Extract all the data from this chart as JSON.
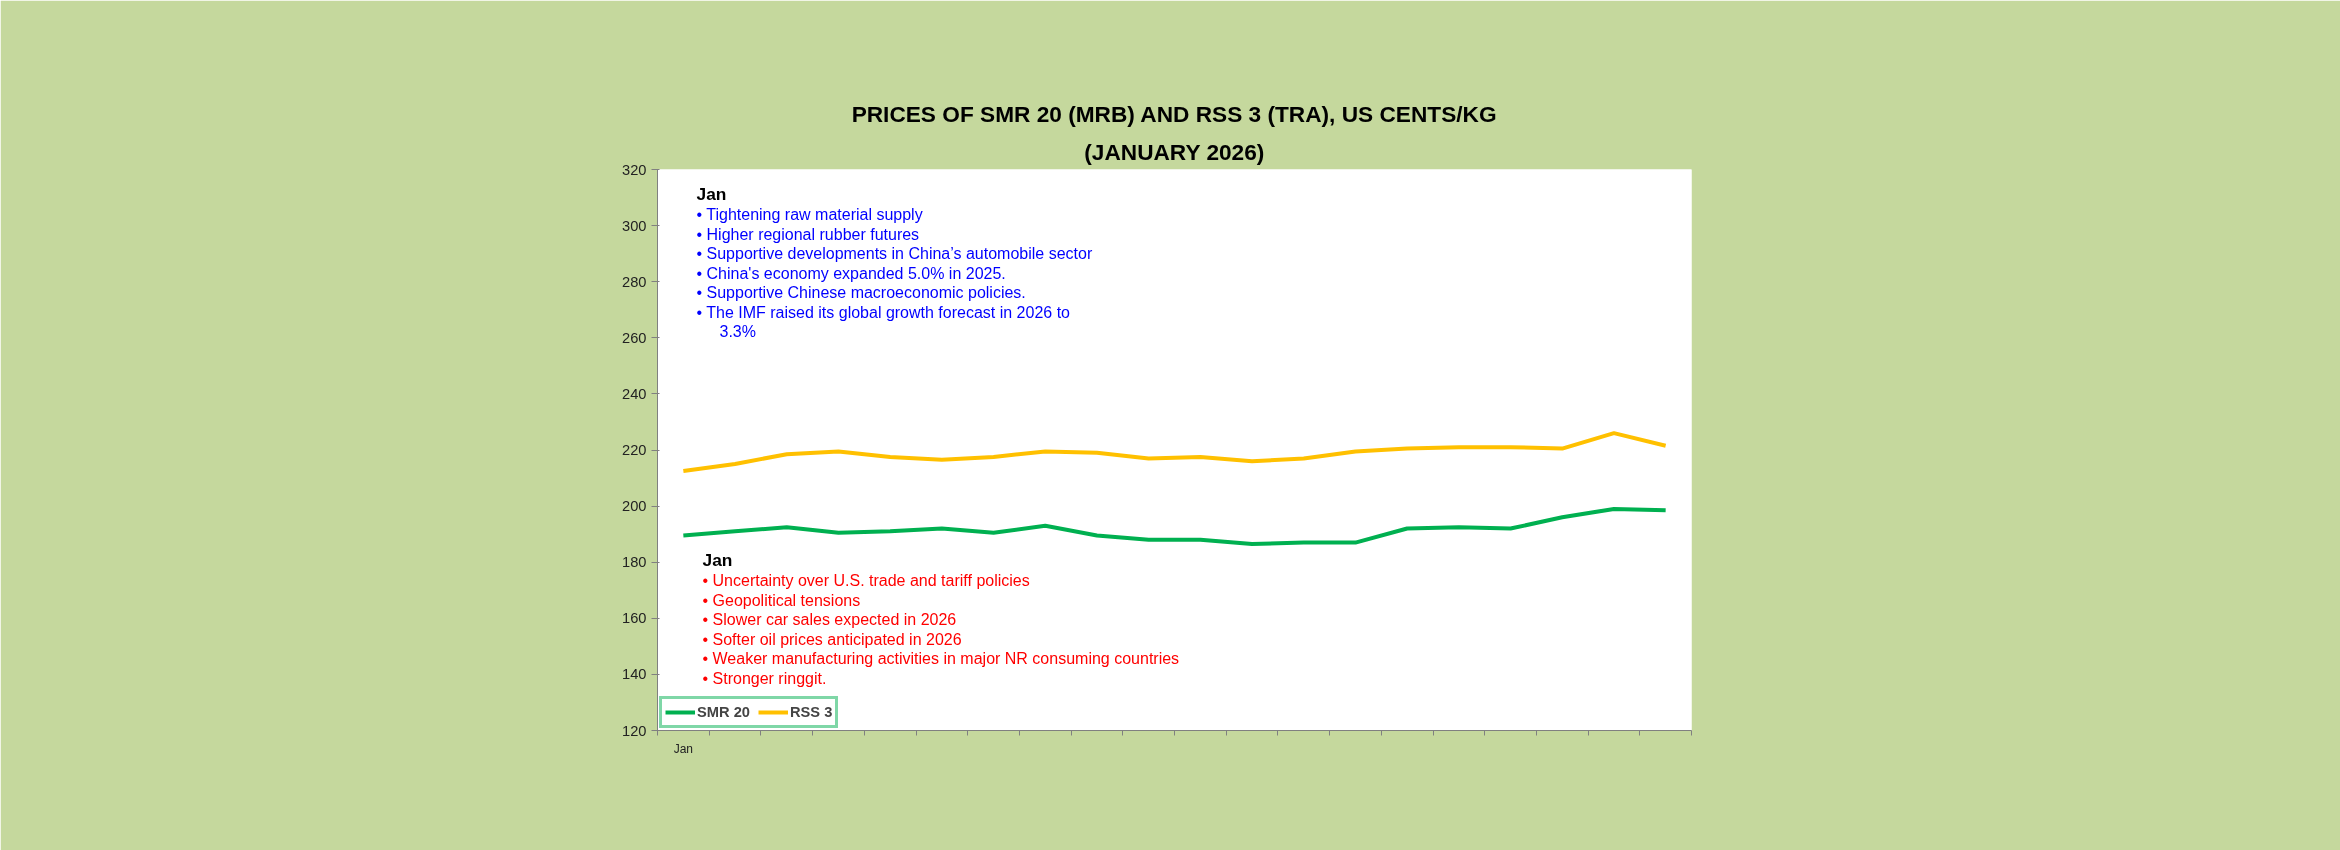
{
  "chart_data": {
    "type": "line",
    "title": "PRICES OF SMR 20 (MRB) AND RSS 3 (TRA), US CENTS/KG",
    "subtitle": "(JANUARY 2026)",
    "categories": [
      "Jan",
      null,
      null,
      null,
      null,
      null,
      null,
      null,
      null,
      null,
      null,
      null,
      null,
      null,
      null,
      null,
      null,
      null,
      null,
      null
    ],
    "series": [
      {
        "name": "SMR 20",
        "color": "#00b050",
        "values": [
          189.5,
          191,
          192.5,
          190.5,
          191,
          192,
          190.5,
          193,
          189.5,
          188,
          188,
          186.5,
          187,
          187,
          192,
          192.5,
          192,
          196,
          199,
          198.5
        ]
      },
      {
        "name": "RSS 3",
        "color": "#ffc000",
        "values": [
          212.5,
          215,
          218.5,
          219.5,
          217.5,
          216.5,
          217.5,
          219.5,
          219,
          217,
          217.5,
          216,
          217,
          219.5,
          220.5,
          221,
          221,
          220.5,
          226,
          221.5
        ]
      }
    ],
    "ylim": [
      120,
      320
    ],
    "yticks": [
      120,
      140,
      160,
      180,
      200,
      220,
      240,
      260,
      280,
      300,
      320
    ],
    "grid": false,
    "legend": "bottom left",
    "line_style": "solid",
    "marker": "none",
    "annotations": [
      "Jan",
      "• Tightening raw material supply",
      "• Higher regional rubber futures",
      "• Supportive developments in China’s automobile sector",
      "• China's economy expanded 5.0% in 2025.",
      "• Supportive Chinese macroeconomic policies.",
      "• The IMF raised its global growth forecast in 2026 to 3.3%",
      "Jan",
      "• Uncertainty over U.S. trade and tariff policies",
      "• Geopolitical tensions",
      "• Slower car sales expected in 2026",
      "• Softer oil prices anticipated in 2026",
      "• Weaker manufacturing activities in major NR consuming countries",
      "• Stronger ringgit."
    ]
  }
}
